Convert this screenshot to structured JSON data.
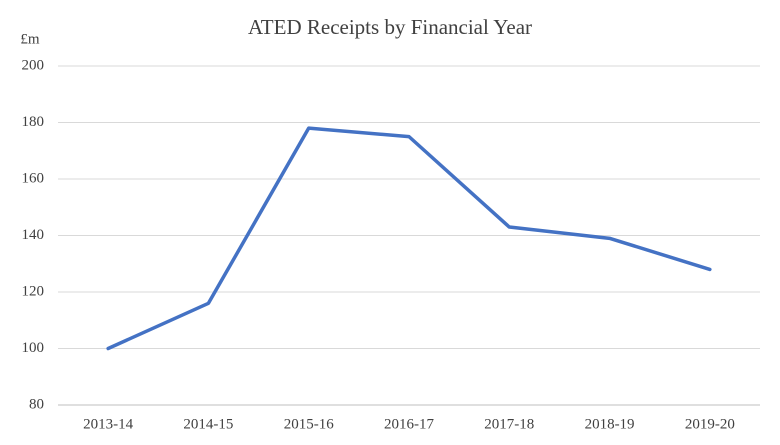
{
  "chart_data": {
    "type": "line",
    "title": "ATED Receipts by Financial Year",
    "y_label": "£m",
    "categories": [
      "2013-14",
      "2014-15",
      "2015-16",
      "2016-17",
      "2017-18",
      "2018-19",
      "2019-20"
    ],
    "values": [
      100,
      116,
      178,
      175,
      143,
      139,
      128
    ],
    "color": "#4472c4",
    "ylim": [
      80,
      200
    ],
    "yticks": [
      80,
      100,
      120,
      140,
      160,
      180,
      200
    ],
    "grid": true
  }
}
